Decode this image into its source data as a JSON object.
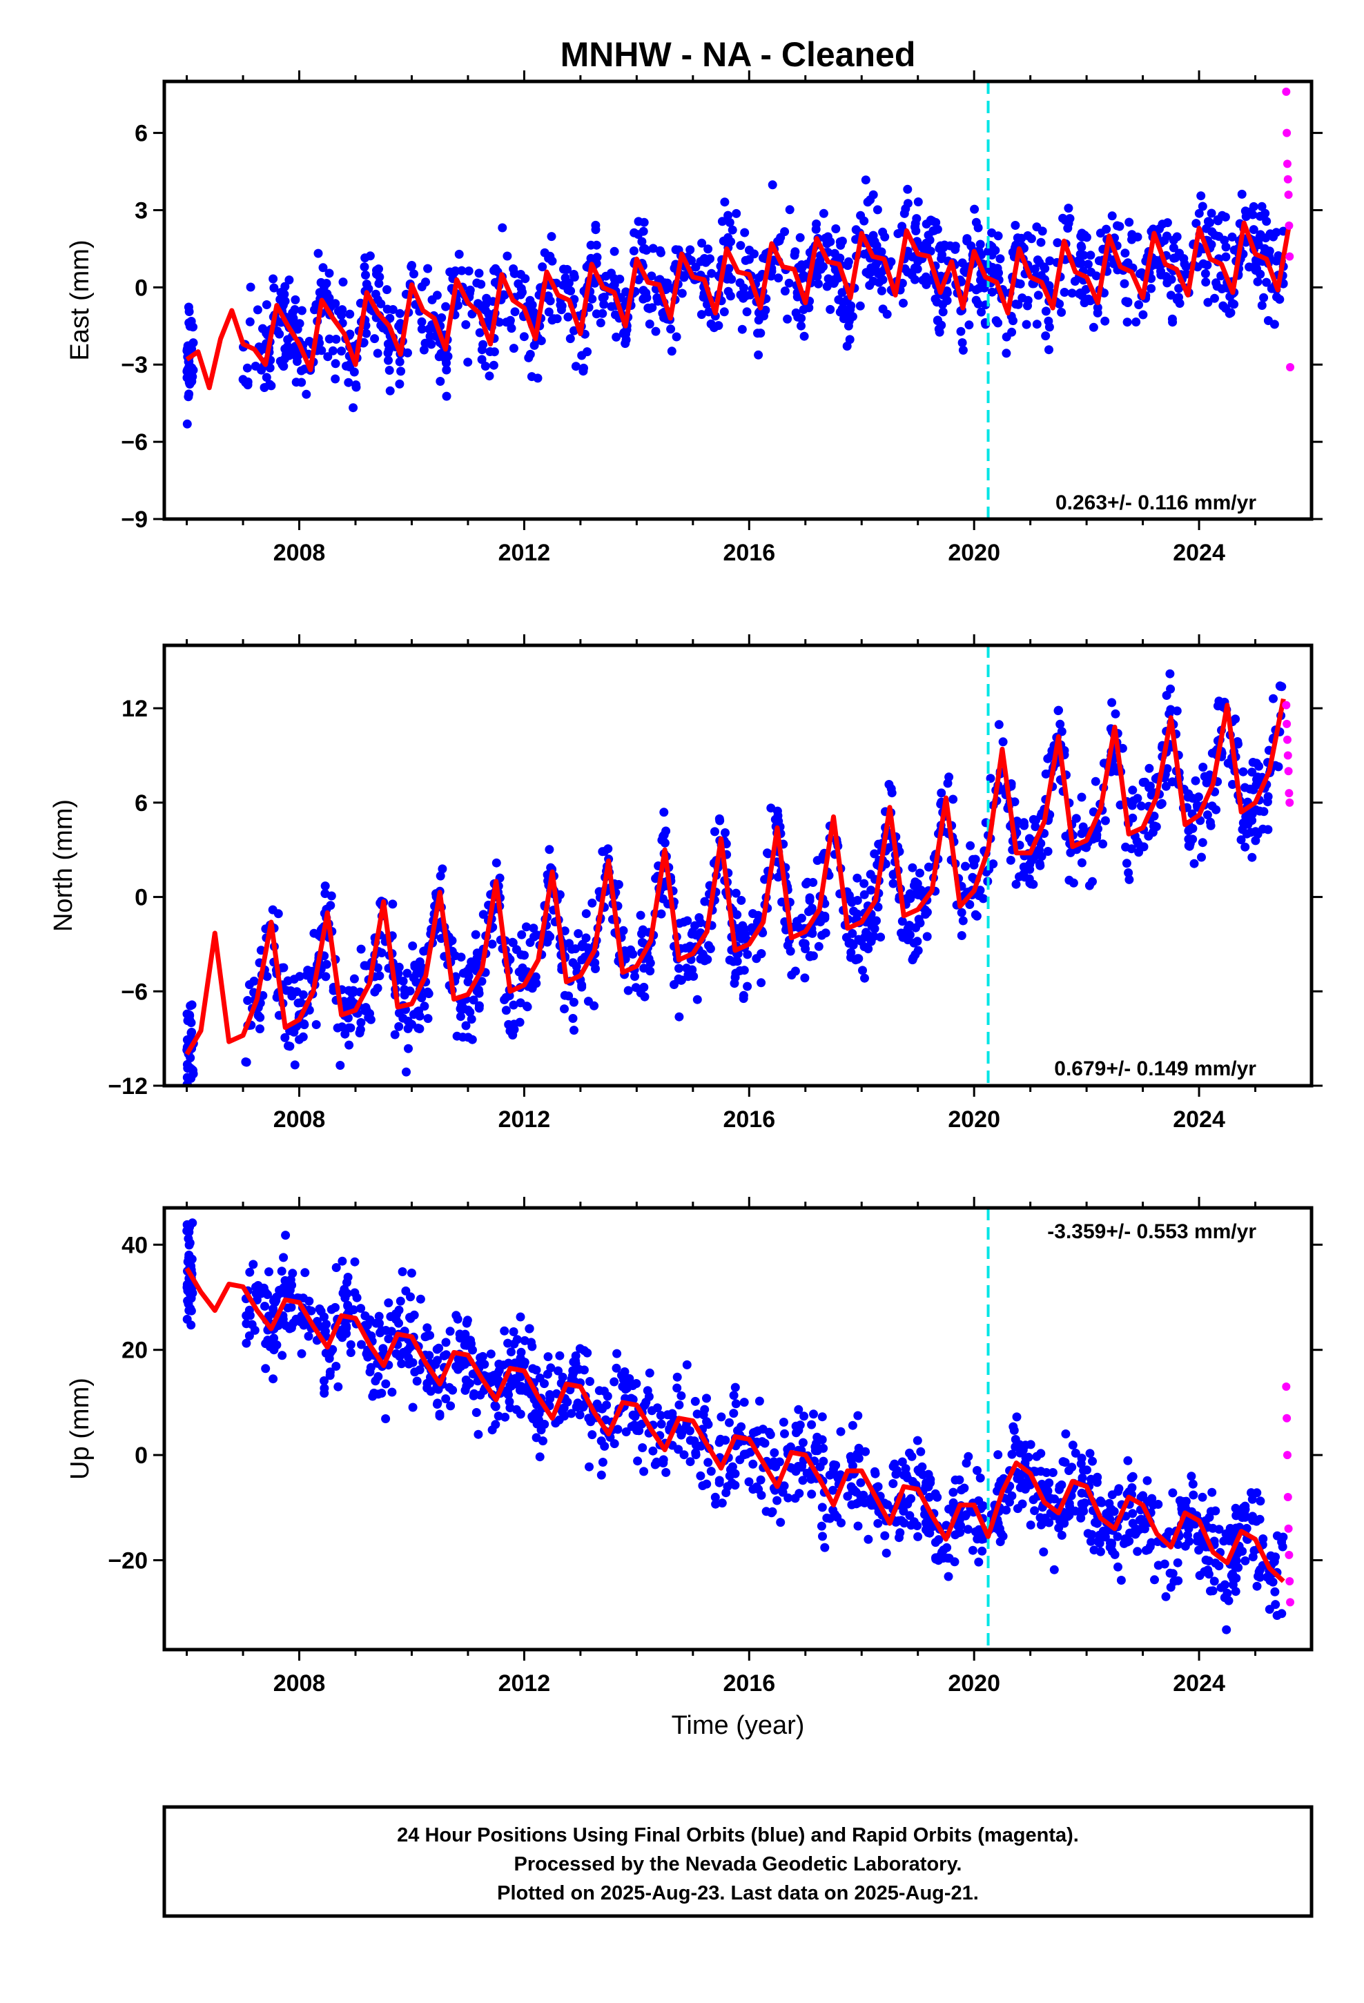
{
  "title": "MNHW  - NA - Cleaned",
  "xlabel": "Time (year)",
  "footer": {
    "line1": "24 Hour Positions Using Final Orbits (blue) and Rapid Orbits (magenta).",
    "line2": "Processed by the Nevada Geodetic Laboratory.",
    "line3": "Plotted on 2025-Aug-23. Last data on 2025-Aug-21."
  },
  "colors": {
    "final_points": "#0000ff",
    "rapid_points": "#ff00ff",
    "model_line": "#ff0000",
    "event_line": "#00e5e5",
    "frame": "#000000"
  },
  "chart_data": [
    {
      "type": "scatter",
      "component": "east",
      "ylabel": "East (mm)",
      "xlim": [
        2005.6,
        2026.0
      ],
      "ylim": [
        -9,
        8
      ],
      "xticks": [
        2008,
        2012,
        2016,
        2020,
        2024
      ],
      "xtick_labels": [
        "2008",
        "2012",
        "2016",
        "2020",
        "2024"
      ],
      "yticks": [
        -9,
        -6,
        -3,
        0,
        3,
        6
      ],
      "ytick_labels": [
        "−9",
        "−6",
        "−3",
        "0",
        "3",
        "6"
      ],
      "rate_label": "0.263+/- 0.116 mm/yr",
      "event_x": 2020.25,
      "series": [
        {
          "kind": "model",
          "x": [
            2006.0,
            2006.2,
            2006.4,
            2006.6,
            2006.8,
            2007.0,
            2007.2,
            2007.4,
            2007.6,
            2007.8,
            2008.0,
            2008.2,
            2008.4,
            2008.6,
            2008.8,
            2009.0,
            2009.2,
            2009.4,
            2009.6,
            2009.8,
            2010.0,
            2010.2,
            2010.4,
            2010.6,
            2010.8,
            2011.0,
            2011.2,
            2011.4,
            2011.6,
            2011.8,
            2012.0,
            2012.2,
            2012.4,
            2012.6,
            2012.8,
            2013.0,
            2013.2,
            2013.4,
            2013.6,
            2013.8,
            2014.0,
            2014.2,
            2014.4,
            2014.6,
            2014.8,
            2015.0,
            2015.2,
            2015.4,
            2015.6,
            2015.8,
            2016.0,
            2016.2,
            2016.4,
            2016.6,
            2016.8,
            2017.0,
            2017.2,
            2017.4,
            2017.6,
            2017.8,
            2018.0,
            2018.2,
            2018.4,
            2018.6,
            2018.8,
            2019.0,
            2019.2,
            2019.4,
            2019.6,
            2019.8,
            2020.0,
            2020.2,
            2020.4,
            2020.6,
            2020.8,
            2021.0,
            2021.2,
            2021.4,
            2021.6,
            2021.8,
            2022.0,
            2022.2,
            2022.4,
            2022.6,
            2022.8,
            2023.0,
            2023.2,
            2023.4,
            2023.6,
            2023.8,
            2024.0,
            2024.2,
            2024.4,
            2024.6,
            2024.8,
            2025.0,
            2025.2,
            2025.4,
            2025.6
          ],
          "y": [
            -2.8,
            -2.5,
            -3.9,
            -2.0,
            -0.9,
            -2.2,
            -2.4,
            -3.0,
            -0.7,
            -1.5,
            -2.2,
            -3.2,
            -0.5,
            -1.2,
            -1.8,
            -3.0,
            -0.2,
            -1.0,
            -1.5,
            -2.6,
            0.1,
            -0.9,
            -1.2,
            -2.4,
            0.3,
            -0.6,
            -1.0,
            -2.2,
            0.5,
            -0.5,
            -0.8,
            -2.0,
            0.6,
            -0.3,
            -0.5,
            -1.8,
            0.9,
            0.0,
            -0.2,
            -1.5,
            1.1,
            0.2,
            0.1,
            -1.2,
            1.3,
            0.4,
            0.3,
            -1.0,
            1.5,
            0.6,
            0.5,
            -0.8,
            1.7,
            0.8,
            0.7,
            -0.6,
            1.9,
            1.0,
            0.9,
            -0.4,
            2.1,
            1.2,
            1.1,
            -0.3,
            2.2,
            1.3,
            1.2,
            -0.2,
            1.0,
            -0.8,
            1.4,
            0.4,
            0.2,
            -1.0,
            1.5,
            0.4,
            0.2,
            -0.8,
            1.8,
            0.6,
            0.4,
            -0.6,
            2.0,
            0.8,
            0.6,
            -0.4,
            2.1,
            0.9,
            0.7,
            -0.3,
            2.3,
            1.1,
            0.9,
            -0.2,
            2.5,
            1.3,
            1.1,
            -0.1,
            2.4
          ]
        },
        {
          "kind": "rapid",
          "x": [
            2025.55,
            2025.56,
            2025.57,
            2025.58,
            2025.59,
            2025.6,
            2025.61,
            2025.62
          ],
          "y": [
            7.6,
            6.0,
            4.8,
            4.2,
            3.6,
            2.4,
            1.2,
            -3.1
          ]
        }
      ]
    },
    {
      "type": "scatter",
      "component": "north",
      "ylabel": "North (mm)",
      "xlim": [
        2005.6,
        2026.0
      ],
      "ylim": [
        -12,
        16
      ],
      "xticks": [
        2008,
        2012,
        2016,
        2020,
        2024
      ],
      "xtick_labels": [
        "2008",
        "2012",
        "2016",
        "2020",
        "2024"
      ],
      "yticks": [
        -12,
        -6,
        0,
        6,
        12
      ],
      "ytick_labels": [
        "−12",
        "−6",
        "0",
        "6",
        "12"
      ],
      "rate_label": "0.679+/- 0.149 mm/yr",
      "event_x": 2020.25,
      "series": [
        {
          "kind": "model",
          "x": [
            2006.0,
            2006.25,
            2006.5,
            2006.75,
            2007.0,
            2007.25,
            2007.5,
            2007.75,
            2008.0,
            2008.25,
            2008.5,
            2008.75,
            2009.0,
            2009.25,
            2009.5,
            2009.75,
            2010.0,
            2010.25,
            2010.5,
            2010.75,
            2011.0,
            2011.25,
            2011.5,
            2011.75,
            2012.0,
            2012.25,
            2012.5,
            2012.75,
            2013.0,
            2013.25,
            2013.5,
            2013.75,
            2014.0,
            2014.25,
            2014.5,
            2014.75,
            2015.0,
            2015.25,
            2015.5,
            2015.75,
            2016.0,
            2016.25,
            2016.5,
            2016.75,
            2017.0,
            2017.25,
            2017.5,
            2017.75,
            2018.0,
            2018.25,
            2018.5,
            2018.75,
            2019.0,
            2019.25,
            2019.5,
            2019.75,
            2020.0,
            2020.25,
            2020.5,
            2020.75,
            2021.0,
            2021.25,
            2021.5,
            2021.75,
            2022.0,
            2022.25,
            2022.5,
            2022.75,
            2023.0,
            2023.25,
            2023.5,
            2023.75,
            2024.0,
            2024.25,
            2024.5,
            2024.75,
            2025.0,
            2025.25,
            2025.5
          ],
          "y": [
            -10.0,
            -8.5,
            -2.3,
            -9.2,
            -8.8,
            -6.5,
            -1.6,
            -8.3,
            -7.8,
            -6.0,
            -1.0,
            -7.5,
            -7.2,
            -5.5,
            -0.3,
            -7.0,
            -6.8,
            -5.0,
            0.3,
            -6.5,
            -6.2,
            -4.6,
            1.0,
            -6.0,
            -5.6,
            -4.0,
            1.6,
            -5.4,
            -5.0,
            -3.4,
            2.3,
            -4.8,
            -4.4,
            -2.8,
            3.0,
            -4.0,
            -3.6,
            -2.2,
            3.7,
            -3.4,
            -3.0,
            -1.6,
            4.4,
            -2.6,
            -2.2,
            -0.8,
            5.1,
            -2.0,
            -1.6,
            -0.2,
            5.7,
            -1.2,
            -0.8,
            0.4,
            6.3,
            -0.6,
            0.4,
            3.0,
            9.4,
            2.8,
            2.8,
            4.8,
            10.2,
            3.2,
            3.6,
            5.6,
            10.8,
            4.0,
            4.4,
            6.4,
            11.4,
            4.6,
            5.2,
            7.2,
            12.2,
            5.4,
            6.0,
            8.0,
            12.6
          ]
        },
        {
          "kind": "rapid",
          "x": [
            2025.55,
            2025.56,
            2025.57,
            2025.58,
            2025.59,
            2025.6,
            2025.61
          ],
          "y": [
            12.2,
            11.0,
            10.0,
            9.0,
            8.0,
            6.6,
            6.0
          ]
        }
      ]
    },
    {
      "type": "scatter",
      "component": "up",
      "ylabel": "Up (mm)",
      "xlim": [
        2005.6,
        2026.0
      ],
      "ylim": [
        -37,
        47
      ],
      "xticks": [
        2008,
        2012,
        2016,
        2020,
        2024
      ],
      "xtick_labels": [
        "2008",
        "2012",
        "2016",
        "2020",
        "2024"
      ],
      "yticks": [
        -20,
        0,
        20,
        40
      ],
      "ytick_labels": [
        "−20",
        "0",
        "20",
        "40"
      ],
      "rate_label": "-3.359+/- 0.553 mm/yr",
      "event_x": 2020.25,
      "series": [
        {
          "kind": "model",
          "x": [
            2006.0,
            2006.25,
            2006.5,
            2006.75,
            2007.0,
            2007.25,
            2007.5,
            2007.75,
            2008.0,
            2008.25,
            2008.5,
            2008.75,
            2009.0,
            2009.25,
            2009.5,
            2009.75,
            2010.0,
            2010.25,
            2010.5,
            2010.75,
            2011.0,
            2011.25,
            2011.5,
            2011.75,
            2012.0,
            2012.25,
            2012.5,
            2012.75,
            2013.0,
            2013.25,
            2013.5,
            2013.75,
            2014.0,
            2014.25,
            2014.5,
            2014.75,
            2015.0,
            2015.25,
            2015.5,
            2015.75,
            2016.0,
            2016.25,
            2016.5,
            2016.75,
            2017.0,
            2017.25,
            2017.5,
            2017.75,
            2018.0,
            2018.25,
            2018.5,
            2018.75,
            2019.0,
            2019.25,
            2019.5,
            2019.75,
            2020.0,
            2020.25,
            2020.5,
            2020.75,
            2021.0,
            2021.25,
            2021.5,
            2021.75,
            2022.0,
            2022.25,
            2022.5,
            2022.75,
            2023.0,
            2023.25,
            2023.5,
            2023.75,
            2024.0,
            2024.25,
            2024.5,
            2024.75,
            2025.0,
            2025.25,
            2025.5
          ],
          "y": [
            35.5,
            31.0,
            27.5,
            32.5,
            32.0,
            27.5,
            24.0,
            29.5,
            29.0,
            24.5,
            20.5,
            26.5,
            26.0,
            21.0,
            17.0,
            23.0,
            22.5,
            17.5,
            13.5,
            19.5,
            19.0,
            14.5,
            10.5,
            16.5,
            16.0,
            11.0,
            7.0,
            13.5,
            13.0,
            8.0,
            4.0,
            10.0,
            9.5,
            5.0,
            1.0,
            7.0,
            6.5,
            2.0,
            -2.5,
            3.5,
            3.0,
            -1.5,
            -6.0,
            0.5,
            0.0,
            -4.5,
            -9.5,
            -3.0,
            -3.0,
            -8.0,
            -13.0,
            -6.0,
            -6.5,
            -11.5,
            -16.0,
            -9.5,
            -9.5,
            -15.5,
            -7.0,
            -1.5,
            -3.5,
            -9.0,
            -11.0,
            -5.0,
            -6.0,
            -12.0,
            -14.0,
            -8.0,
            -9.5,
            -15.0,
            -17.5,
            -11.0,
            -12.5,
            -18.5,
            -20.5,
            -14.5,
            -16.0,
            -21.5,
            -24.0
          ]
        },
        {
          "kind": "rapid",
          "x": [
            2025.55,
            2025.56,
            2025.57,
            2025.58,
            2025.59,
            2025.6,
            2025.61,
            2025.62
          ],
          "y": [
            13.0,
            7.0,
            0.0,
            -8.0,
            -14.0,
            -19.0,
            -24.0,
            -28.0
          ]
        }
      ]
    }
  ]
}
